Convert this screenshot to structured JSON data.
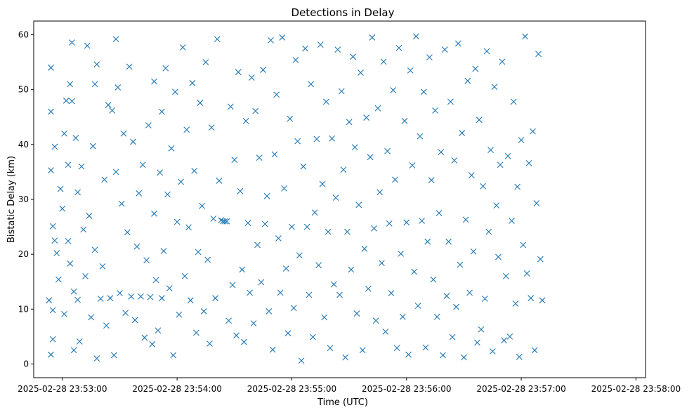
{
  "chart_data": {
    "type": "scatter",
    "title": "Detections in Delay",
    "xlabel": "Time (UTC)",
    "ylabel": "Bistatic Delay (km)",
    "x_tick_labels": [
      "2025-02-28 23:53:00",
      "2025-02-28 23:54:00",
      "2025-02-28 23:55:00",
      "2025-02-28 23:56:00",
      "2025-02-28 23:57:00",
      "2025-02-28 23:58:00"
    ],
    "x_ticks": [
      "2025-02-28 23:53:00",
      "2025-02-28 23:54:00",
      "2025-02-28 23:55:00",
      "2025-02-28 23:56:00",
      "2025-02-28 23:57:00",
      "2025-02-28 23:58:00"
    ],
    "xlim": [
      "2025-02-28 23:52:45",
      "2025-02-28 23:58:05"
    ],
    "y_ticks": [
      0,
      10,
      20,
      30,
      40,
      50,
      60
    ],
    "ylim": [
      -2.5,
      62.5
    ],
    "grid": false,
    "marker": "x",
    "color": "#1f77b4",
    "x_time_format": "YYYY-MM-DD HH:MM:SS",
    "points": [
      [
        "2025-02-28 23:52:53",
        11.6
      ],
      [
        "2025-02-28 23:52:54",
        1.7
      ],
      [
        "2025-02-28 23:52:54",
        54.0
      ],
      [
        "2025-02-28 23:52:54",
        46.0
      ],
      [
        "2025-02-28 23:52:54",
        35.3
      ],
      [
        "2025-02-28 23:52:55",
        25.1
      ],
      [
        "2025-02-28 23:52:55",
        4.5
      ],
      [
        "2025-02-28 23:52:55",
        9.8
      ],
      [
        "2025-02-28 23:52:56",
        22.5
      ],
      [
        "2025-02-28 23:52:56",
        39.6
      ],
      [
        "2025-02-28 23:52:57",
        20.2
      ],
      [
        "2025-02-28 23:52:58",
        15.4
      ],
      [
        "2025-02-28 23:52:59",
        31.9
      ],
      [
        "2025-02-28 23:53:00",
        28.3
      ],
      [
        "2025-02-28 23:53:01",
        9.1
      ],
      [
        "2025-02-28 23:53:01",
        42.0
      ],
      [
        "2025-02-28 23:53:02",
        48.0
      ],
      [
        "2025-02-28 23:53:03",
        36.3
      ],
      [
        "2025-02-28 23:53:03",
        22.4
      ],
      [
        "2025-02-28 23:53:04",
        18.3
      ],
      [
        "2025-02-28 23:53:04",
        51.0
      ],
      [
        "2025-02-28 23:53:05",
        47.9
      ],
      [
        "2025-02-28 23:53:05",
        58.6
      ],
      [
        "2025-02-28 23:53:06",
        2.5
      ],
      [
        "2025-02-28 23:53:06",
        13.2
      ],
      [
        "2025-02-28 23:53:07",
        41.2
      ],
      [
        "2025-02-28 23:53:08",
        11.7
      ],
      [
        "2025-02-28 23:53:08",
        31.3
      ],
      [
        "2025-02-28 23:53:09",
        4.1
      ],
      [
        "2025-02-28 23:53:10",
        36.0
      ],
      [
        "2025-02-28 23:53:11",
        24.5
      ],
      [
        "2025-02-28 23:53:12",
        16.0
      ],
      [
        "2025-02-28 23:53:13",
        58.0
      ],
      [
        "2025-02-28 23:53:14",
        27.0
      ],
      [
        "2025-02-28 23:53:15",
        8.5
      ],
      [
        "2025-02-28 23:53:16",
        39.7
      ],
      [
        "2025-02-28 23:53:17",
        51.0
      ],
      [
        "2025-02-28 23:53:17",
        20.8
      ],
      [
        "2025-02-28 23:53:18",
        1.0
      ],
      [
        "2025-02-28 23:53:18",
        54.6
      ],
      [
        "2025-02-28 23:53:20",
        11.9
      ],
      [
        "2025-02-28 23:53:21",
        17.8
      ],
      [
        "2025-02-28 23:53:22",
        33.6
      ],
      [
        "2025-02-28 23:53:23",
        7.0
      ],
      [
        "2025-02-28 23:53:24",
        47.2
      ],
      [
        "2025-02-28 23:53:25",
        12.0
      ],
      [
        "2025-02-28 23:53:26",
        46.2
      ],
      [
        "2025-02-28 23:53:27",
        1.6
      ],
      [
        "2025-02-28 23:53:28",
        59.2
      ],
      [
        "2025-02-28 23:53:28",
        35.0
      ],
      [
        "2025-02-28 23:53:29",
        50.4
      ],
      [
        "2025-02-28 23:53:30",
        12.9
      ],
      [
        "2025-02-28 23:53:31",
        29.2
      ],
      [
        "2025-02-28 23:53:32",
        42.0
      ],
      [
        "2025-02-28 23:53:33",
        9.3
      ],
      [
        "2025-02-28 23:53:34",
        24.0
      ],
      [
        "2025-02-28 23:53:35",
        54.2
      ],
      [
        "2025-02-28 23:53:36",
        12.3
      ],
      [
        "2025-02-28 23:53:37",
        40.5
      ],
      [
        "2025-02-28 23:53:38",
        8.0
      ],
      [
        "2025-02-28 23:53:39",
        21.4
      ],
      [
        "2025-02-28 23:53:40",
        31.1
      ],
      [
        "2025-02-28 23:53:41",
        12.3
      ],
      [
        "2025-02-28 23:53:42",
        36.3
      ],
      [
        "2025-02-28 23:53:43",
        4.8
      ],
      [
        "2025-02-28 23:53:44",
        18.9
      ],
      [
        "2025-02-28 23:53:45",
        43.5
      ],
      [
        "2025-02-28 23:53:46",
        12.2
      ],
      [
        "2025-02-28 23:53:47",
        3.6
      ],
      [
        "2025-02-28 23:53:48",
        27.4
      ],
      [
        "2025-02-28 23:53:48",
        51.5
      ],
      [
        "2025-02-28 23:53:49",
        15.3
      ],
      [
        "2025-02-28 23:53:50",
        6.1
      ],
      [
        "2025-02-28 23:53:51",
        34.9
      ],
      [
        "2025-02-28 23:53:52",
        12.0
      ],
      [
        "2025-02-28 23:53:52",
        46.0
      ],
      [
        "2025-02-28 23:53:53",
        20.6
      ],
      [
        "2025-02-28 23:53:54",
        53.9
      ],
      [
        "2025-02-28 23:53:55",
        30.9
      ],
      [
        "2025-02-28 23:53:56",
        13.8
      ],
      [
        "2025-02-28 23:53:57",
        39.3
      ],
      [
        "2025-02-28 23:53:58",
        1.6
      ],
      [
        "2025-02-28 23:53:59",
        49.6
      ],
      [
        "2025-02-28 23:54:00",
        25.9
      ],
      [
        "2025-02-28 23:54:01",
        9.0
      ],
      [
        "2025-02-28 23:54:02",
        33.2
      ],
      [
        "2025-02-28 23:54:03",
        57.7
      ],
      [
        "2025-02-28 23:54:04",
        16.0
      ],
      [
        "2025-02-28 23:54:05",
        42.7
      ],
      [
        "2025-02-28 23:54:06",
        24.9
      ],
      [
        "2025-02-28 23:54:07",
        11.6
      ],
      [
        "2025-02-28 23:54:08",
        51.2
      ],
      [
        "2025-02-28 23:54:09",
        35.2
      ],
      [
        "2025-02-28 23:54:10",
        5.7
      ],
      [
        "2025-02-28 23:54:11",
        20.4
      ],
      [
        "2025-02-28 23:54:12",
        47.6
      ],
      [
        "2025-02-28 23:54:13",
        28.8
      ],
      [
        "2025-02-28 23:54:14",
        9.6
      ],
      [
        "2025-02-28 23:54:15",
        55.0
      ],
      [
        "2025-02-28 23:54:16",
        19.0
      ],
      [
        "2025-02-28 23:54:17",
        3.7
      ],
      [
        "2025-02-28 23:54:18",
        43.1
      ],
      [
        "2025-02-28 23:54:19",
        26.5
      ],
      [
        "2025-02-28 23:54:20",
        12.0
      ],
      [
        "2025-02-28 23:54:21",
        59.2
      ],
      [
        "2025-02-28 23:54:22",
        33.4
      ],
      [
        "2025-02-28 23:54:23",
        26.2
      ],
      [
        "2025-02-28 23:54:24",
        26.0
      ],
      [
        "2025-02-28 23:54:25",
        26.0
      ],
      [
        "2025-02-28 23:54:26",
        26.0
      ],
      [
        "2025-02-28 23:54:27",
        7.9
      ],
      [
        "2025-02-28 23:54:28",
        46.9
      ],
      [
        "2025-02-28 23:54:29",
        14.4
      ],
      [
        "2025-02-28 23:54:30",
        37.2
      ],
      [
        "2025-02-28 23:54:31",
        5.2
      ],
      [
        "2025-02-28 23:54:32",
        53.2
      ],
      [
        "2025-02-28 23:54:33",
        31.5
      ],
      [
        "2025-02-28 23:54:34",
        17.2
      ],
      [
        "2025-02-28 23:54:35",
        4.0
      ],
      [
        "2025-02-28 23:54:36",
        44.3
      ],
      [
        "2025-02-28 23:54:37",
        25.7
      ],
      [
        "2025-02-28 23:54:38",
        13.0
      ],
      [
        "2025-02-28 23:54:39",
        52.2
      ],
      [
        "2025-02-28 23:54:40",
        7.4
      ],
      [
        "2025-02-28 23:54:41",
        46.1
      ],
      [
        "2025-02-28 23:54:42",
        21.7
      ],
      [
        "2025-02-28 23:54:43",
        37.6
      ],
      [
        "2025-02-28 23:54:44",
        14.9
      ],
      [
        "2025-02-28 23:54:45",
        53.6
      ],
      [
        "2025-02-28 23:54:46",
        25.5
      ],
      [
        "2025-02-28 23:54:47",
        30.6
      ],
      [
        "2025-02-28 23:54:48",
        9.6
      ],
      [
        "2025-02-28 23:54:49",
        59.0
      ],
      [
        "2025-02-28 23:54:50",
        2.6
      ],
      [
        "2025-02-28 23:54:51",
        38.2
      ],
      [
        "2025-02-28 23:54:52",
        49.1
      ],
      [
        "2025-02-28 23:54:53",
        22.9
      ],
      [
        "2025-02-28 23:54:54",
        13.0
      ],
      [
        "2025-02-28 23:54:55",
        59.5
      ],
      [
        "2025-02-28 23:54:56",
        32.0
      ],
      [
        "2025-02-28 23:54:57",
        17.4
      ],
      [
        "2025-02-28 23:54:58",
        5.6
      ],
      [
        "2025-02-28 23:54:59",
        44.7
      ],
      [
        "2025-02-28 23:55:00",
        25.0
      ],
      [
        "2025-02-28 23:55:01",
        10.2
      ],
      [
        "2025-02-28 23:55:02",
        55.4
      ],
      [
        "2025-02-28 23:55:03",
        40.6
      ],
      [
        "2025-02-28 23:55:04",
        19.8
      ],
      [
        "2025-02-28 23:55:05",
        0.6
      ],
      [
        "2025-02-28 23:55:06",
        36.0
      ],
      [
        "2025-02-28 23:55:07",
        57.5
      ],
      [
        "2025-02-28 23:55:08",
        25.0
      ],
      [
        "2025-02-28 23:55:09",
        12.6
      ],
      [
        "2025-02-28 23:55:10",
        51.0
      ],
      [
        "2025-02-28 23:55:11",
        4.9
      ],
      [
        "2025-02-28 23:55:12",
        27.6
      ],
      [
        "2025-02-28 23:55:13",
        41.0
      ],
      [
        "2025-02-28 23:55:14",
        18.0
      ],
      [
        "2025-02-28 23:55:15",
        58.2
      ],
      [
        "2025-02-28 23:55:16",
        32.8
      ],
      [
        "2025-02-28 23:55:17",
        8.5
      ],
      [
        "2025-02-28 23:55:18",
        47.8
      ],
      [
        "2025-02-28 23:55:19",
        24.1
      ],
      [
        "2025-02-28 23:55:20",
        2.9
      ],
      [
        "2025-02-28 23:55:21",
        41.1
      ],
      [
        "2025-02-28 23:55:22",
        14.5
      ],
      [
        "2025-02-28 23:55:23",
        30.3
      ],
      [
        "2025-02-28 23:55:24",
        57.3
      ],
      [
        "2025-02-28 23:55:25",
        12.6
      ],
      [
        "2025-02-28 23:55:26",
        49.7
      ],
      [
        "2025-02-28 23:55:27",
        35.4
      ],
      [
        "2025-02-28 23:55:28",
        1.2
      ],
      [
        "2025-02-28 23:55:29",
        24.1
      ],
      [
        "2025-02-28 23:55:30",
        44.1
      ],
      [
        "2025-02-28 23:55:31",
        17.2
      ],
      [
        "2025-02-28 23:55:32",
        56.0
      ],
      [
        "2025-02-28 23:55:33",
        39.5
      ],
      [
        "2025-02-28 23:55:34",
        9.2
      ],
      [
        "2025-02-28 23:55:35",
        29.0
      ],
      [
        "2025-02-28 23:55:36",
        53.1
      ],
      [
        "2025-02-28 23:55:37",
        2.5
      ],
      [
        "2025-02-28 23:55:38",
        21.0
      ],
      [
        "2025-02-28 23:55:39",
        44.9
      ],
      [
        "2025-02-28 23:55:40",
        13.7
      ],
      [
        "2025-02-28 23:55:41",
        37.7
      ],
      [
        "2025-02-28 23:55:42",
        59.5
      ],
      [
        "2025-02-28 23:55:43",
        24.7
      ],
      [
        "2025-02-28 23:55:44",
        7.9
      ],
      [
        "2025-02-28 23:55:45",
        46.6
      ],
      [
        "2025-02-28 23:55:46",
        31.3
      ],
      [
        "2025-02-28 23:55:47",
        18.4
      ],
      [
        "2025-02-28 23:55:48",
        55.1
      ],
      [
        "2025-02-28 23:55:49",
        5.9
      ],
      [
        "2025-02-28 23:55:50",
        38.8
      ],
      [
        "2025-02-28 23:55:51",
        25.6
      ],
      [
        "2025-02-28 23:55:52",
        12.9
      ],
      [
        "2025-02-28 23:55:53",
        49.9
      ],
      [
        "2025-02-28 23:55:54",
        33.6
      ],
      [
        "2025-02-28 23:55:55",
        2.9
      ],
      [
        "2025-02-28 23:55:56",
        57.6
      ],
      [
        "2025-02-28 23:55:57",
        20.1
      ],
      [
        "2025-02-28 23:55:58",
        8.6
      ],
      [
        "2025-02-28 23:55:59",
        44.3
      ],
      [
        "2025-02-28 23:56:00",
        25.8
      ],
      [
        "2025-02-28 23:56:01",
        1.7
      ],
      [
        "2025-02-28 23:56:02",
        53.5
      ],
      [
        "2025-02-28 23:56:03",
        36.2
      ],
      [
        "2025-02-28 23:56:04",
        16.8
      ],
      [
        "2025-02-28 23:56:05",
        59.7
      ],
      [
        "2025-02-28 23:56:06",
        10.6
      ],
      [
        "2025-02-28 23:56:07",
        41.5
      ],
      [
        "2025-02-28 23:56:08",
        26.1
      ],
      [
        "2025-02-28 23:56:09",
        49.6
      ],
      [
        "2025-02-28 23:56:10",
        3.0
      ],
      [
        "2025-02-28 23:56:11",
        22.3
      ],
      [
        "2025-02-28 23:56:12",
        55.9
      ],
      [
        "2025-02-28 23:56:13",
        33.5
      ],
      [
        "2025-02-28 23:56:14",
        15.4
      ],
      [
        "2025-02-28 23:56:15",
        46.2
      ],
      [
        "2025-02-28 23:56:16",
        8.6
      ],
      [
        "2025-02-28 23:56:17",
        27.5
      ],
      [
        "2025-02-28 23:56:18",
        38.6
      ],
      [
        "2025-02-28 23:56:19",
        1.6
      ],
      [
        "2025-02-28 23:56:20",
        57.3
      ],
      [
        "2025-02-28 23:56:21",
        12.4
      ],
      [
        "2025-02-28 23:56:22",
        22.3
      ],
      [
        "2025-02-28 23:56:23",
        47.8
      ],
      [
        "2025-02-28 23:56:24",
        4.9
      ],
      [
        "2025-02-28 23:56:25",
        37.1
      ],
      [
        "2025-02-28 23:56:26",
        10.4
      ],
      [
        "2025-02-28 23:56:27",
        58.4
      ],
      [
        "2025-02-28 23:56:28",
        18.1
      ],
      [
        "2025-02-28 23:56:29",
        42.1
      ],
      [
        "2025-02-28 23:56:30",
        1.2
      ],
      [
        "2025-02-28 23:56:31",
        26.3
      ],
      [
        "2025-02-28 23:56:32",
        51.6
      ],
      [
        "2025-02-28 23:56:33",
        13.0
      ],
      [
        "2025-02-28 23:56:34",
        34.4
      ],
      [
        "2025-02-28 23:56:35",
        20.5
      ],
      [
        "2025-02-28 23:56:36",
        53.8
      ],
      [
        "2025-02-28 23:56:37",
        3.9
      ],
      [
        "2025-02-28 23:56:38",
        44.5
      ],
      [
        "2025-02-28 23:56:39",
        6.3
      ],
      [
        "2025-02-28 23:56:40",
        32.4
      ],
      [
        "2025-02-28 23:56:41",
        11.9
      ],
      [
        "2025-02-28 23:56:42",
        57.0
      ],
      [
        "2025-02-28 23:56:43",
        24.1
      ],
      [
        "2025-02-28 23:56:44",
        39.0
      ],
      [
        "2025-02-28 23:56:45",
        2.3
      ],
      [
        "2025-02-28 23:56:46",
        50.5
      ],
      [
        "2025-02-28 23:56:47",
        28.9
      ],
      [
        "2025-02-28 23:56:48",
        19.5
      ],
      [
        "2025-02-28 23:56:49",
        36.3
      ],
      [
        "2025-02-28 23:56:50",
        55.1
      ],
      [
        "2025-02-28 23:56:51",
        4.3
      ],
      [
        "2025-02-28 23:56:52",
        16.0
      ],
      [
        "2025-02-28 23:56:53",
        37.9
      ],
      [
        "2025-02-28 23:56:54",
        5.0
      ],
      [
        "2025-02-28 23:56:55",
        26.1
      ],
      [
        "2025-02-28 23:56:56",
        47.8
      ],
      [
        "2025-02-28 23:56:57",
        11.0
      ],
      [
        "2025-02-28 23:56:58",
        32.3
      ],
      [
        "2025-02-28 23:56:59",
        1.3
      ],
      [
        "2025-02-28 23:57:00",
        40.8
      ],
      [
        "2025-02-28 23:57:01",
        21.7
      ],
      [
        "2025-02-28 23:57:02",
        59.7
      ],
      [
        "2025-02-28 23:57:03",
        16.5
      ],
      [
        "2025-02-28 23:57:04",
        36.6
      ],
      [
        "2025-02-28 23:57:05",
        12.0
      ],
      [
        "2025-02-28 23:57:06",
        42.4
      ],
      [
        "2025-02-28 23:57:07",
        2.5
      ],
      [
        "2025-02-28 23:57:08",
        29.3
      ],
      [
        "2025-02-28 23:57:09",
        56.5
      ],
      [
        "2025-02-28 23:57:10",
        19.1
      ],
      [
        "2025-02-28 23:57:11",
        11.6
      ]
    ]
  }
}
